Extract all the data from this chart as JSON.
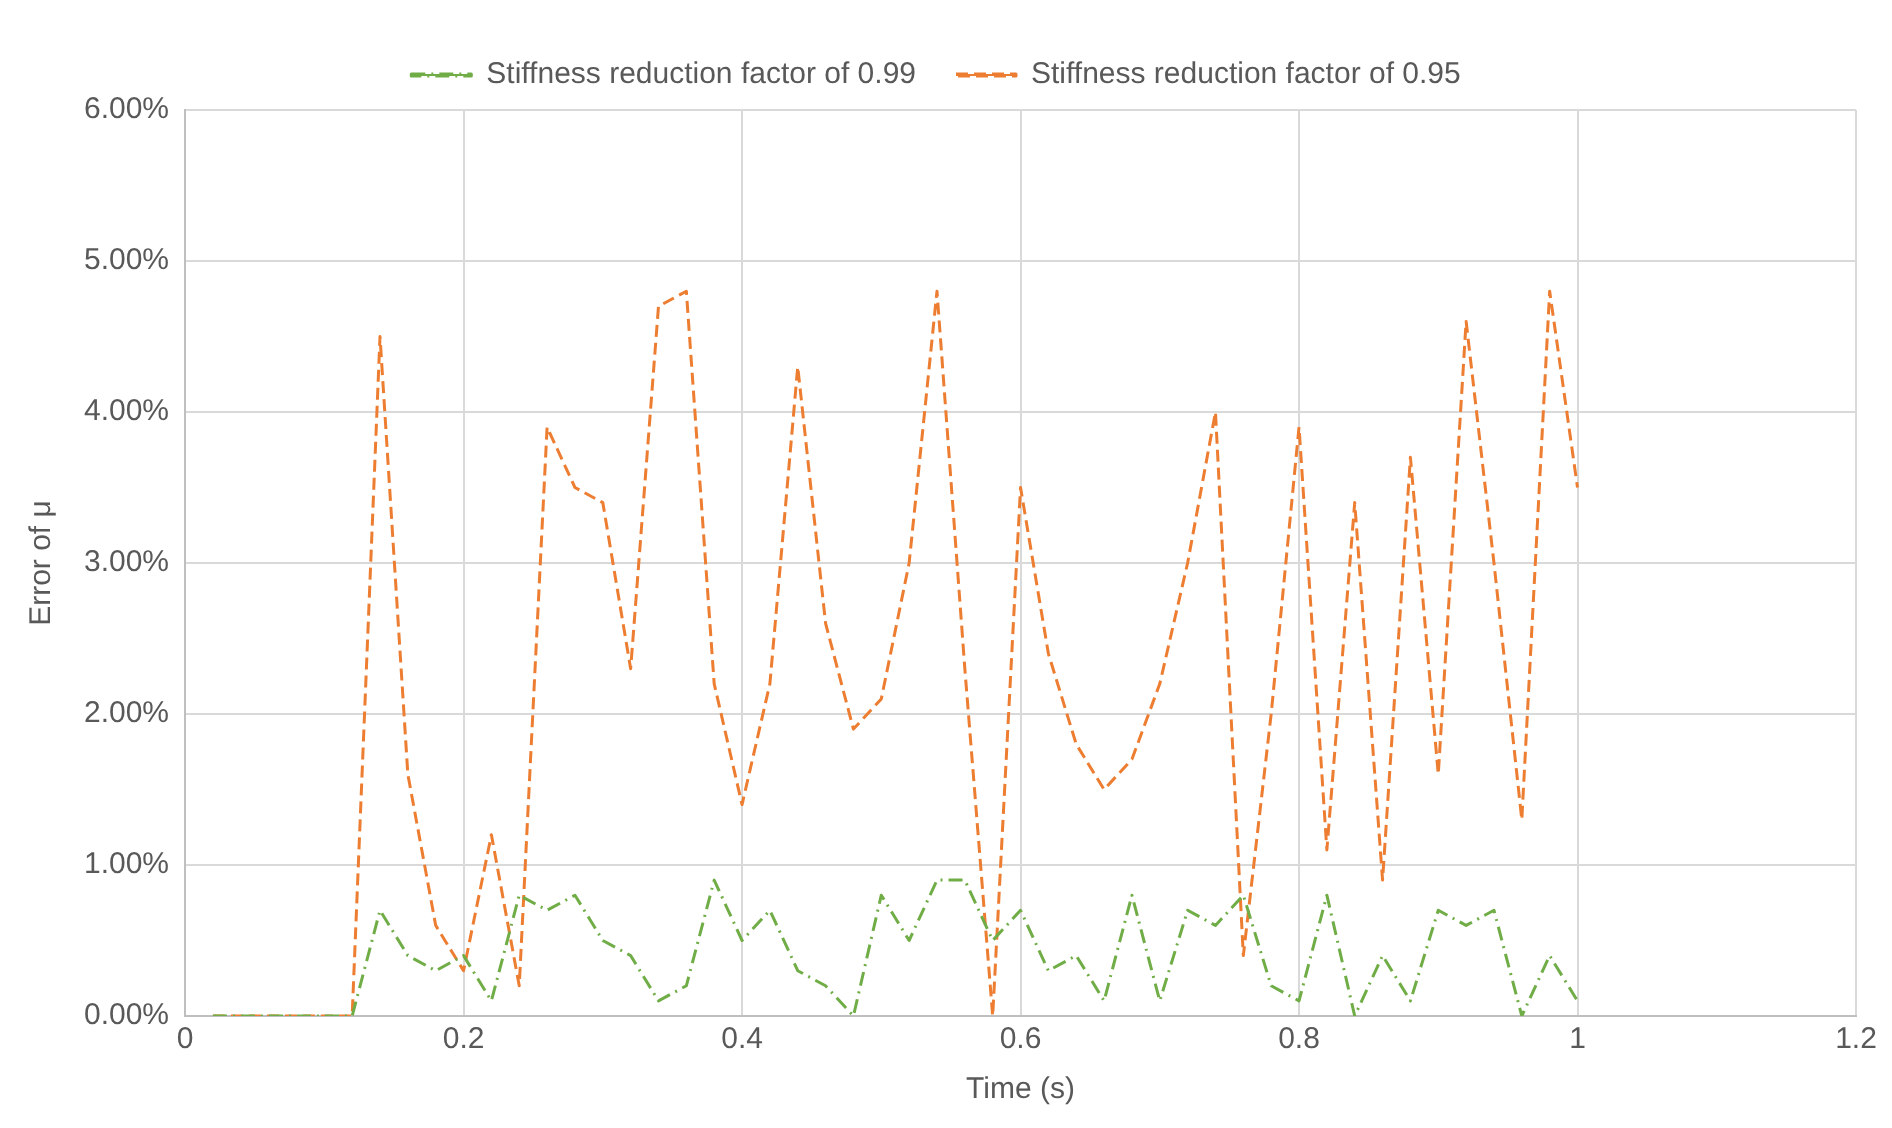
{
  "chart_data": {
    "type": "line",
    "xlabel": "Time (s)",
    "ylabel": "Error of μ",
    "x": [
      0.02,
      0.04,
      0.06,
      0.08,
      0.1,
      0.12,
      0.14,
      0.16,
      0.18,
      0.2,
      0.22,
      0.24,
      0.26,
      0.28,
      0.3,
      0.32,
      0.34,
      0.36,
      0.38,
      0.4,
      0.42,
      0.44,
      0.46,
      0.48,
      0.5,
      0.52,
      0.54,
      0.56,
      0.58,
      0.6,
      0.62,
      0.64,
      0.66,
      0.68,
      0.7,
      0.72,
      0.74,
      0.76,
      0.78,
      0.8,
      0.82,
      0.84,
      0.86,
      0.88,
      0.9,
      0.92,
      0.94,
      0.96,
      0.98,
      1.0
    ],
    "series": [
      {
        "name": "Stiffness reduction factor of 0.99",
        "color": "#70ad47",
        "line_style": "dashdot",
        "values": [
          0,
          0,
          0,
          0,
          0,
          0,
          0.7,
          0.4,
          0.3,
          0.4,
          0.1,
          0.8,
          0.7,
          0.8,
          0.5,
          0.4,
          0.1,
          0.2,
          0.9,
          0.5,
          0.7,
          0.3,
          0.2,
          0.0,
          0.8,
          0.5,
          0.9,
          0.9,
          0.5,
          0.7,
          0.3,
          0.4,
          0.1,
          0.8,
          0.1,
          0.7,
          0.6,
          0.8,
          0.2,
          0.1,
          0.8,
          0.0,
          0.4,
          0.1,
          0.7,
          0.6,
          0.7,
          0.0,
          0.4,
          0.1
        ]
      },
      {
        "name": "Stiffness reduction factor of 0.95",
        "color": "#ed7d31",
        "line_style": "dashed",
        "values": [
          0,
          0,
          0,
          0,
          0,
          0,
          4.5,
          1.6,
          0.6,
          0.3,
          1.2,
          0.2,
          3.9,
          3.5,
          3.4,
          2.3,
          4.7,
          4.8,
          2.2,
          1.4,
          2.2,
          4.3,
          2.6,
          1.9,
          2.1,
          3.0,
          4.8,
          2.3,
          0,
          3.5,
          2.4,
          1.8,
          1.5,
          1.7,
          2.2,
          3.0,
          4.0,
          0.4,
          2.0,
          3.9,
          1.1,
          3.4,
          0.9,
          3.7,
          1.6,
          4.6,
          3.0,
          1.3,
          4.8,
          3.5
        ]
      }
    ],
    "xlim": [
      0,
      1.2
    ],
    "xticks": [
      0,
      0.2,
      0.4,
      0.6,
      0.8,
      1,
      1.2
    ],
    "ylim": [
      0,
      6
    ],
    "yticks": [
      {
        "value": 0,
        "label": "0.00%"
      },
      {
        "value": 1,
        "label": "1.00%"
      },
      {
        "value": 2,
        "label": "2.00%"
      },
      {
        "value": 3,
        "label": "3.00%"
      },
      {
        "value": 4,
        "label": "4.00%"
      },
      {
        "value": 5,
        "label": "5.00%"
      },
      {
        "value": 6,
        "label": "6.00%"
      }
    ],
    "grid": true,
    "legend": "top",
    "marker": "none"
  }
}
